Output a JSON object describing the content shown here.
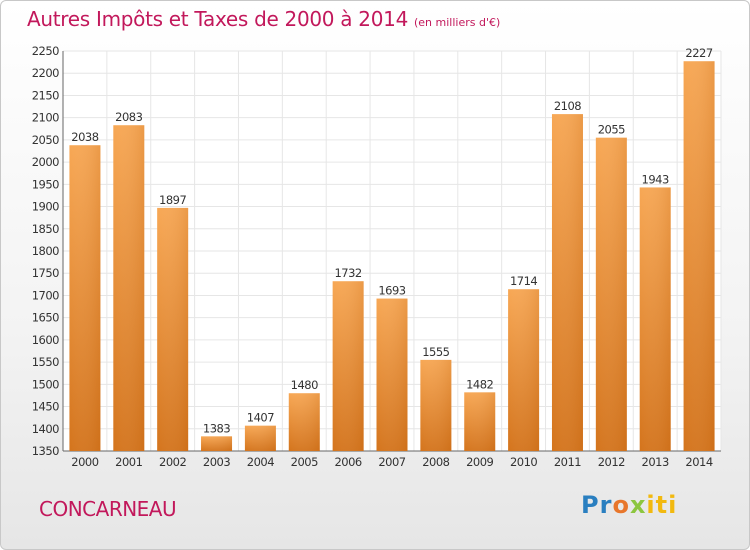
{
  "header": {
    "title": "Autres Impôts et Taxes de 2000 à 2014",
    "unit": "(en milliers d'€)"
  },
  "footer": {
    "city": "CONCARNEAU",
    "logo_parts": [
      "Pr",
      "o",
      "x",
      "iti"
    ]
  },
  "colors": {
    "title": "#c2185b",
    "bar_light": "#f6a352",
    "bar_dark": "#d97a22",
    "grid": "#e6e6e6"
  },
  "chart_data": {
    "type": "bar",
    "title": "Autres Impôts et Taxes de 2000 à 2014",
    "subtitle": "(en milliers d'€)",
    "categories": [
      "2000",
      "2001",
      "2002",
      "2003",
      "2004",
      "2005",
      "2006",
      "2007",
      "2008",
      "2009",
      "2010",
      "2011",
      "2012",
      "2013",
      "2014"
    ],
    "values": [
      2038,
      2083,
      1897,
      1383,
      1407,
      1480,
      1732,
      1693,
      1555,
      1482,
      1714,
      2108,
      2055,
      1943,
      2227
    ],
    "ylim": [
      1350,
      2250
    ],
    "ytick_step": 50,
    "grid": true,
    "legend": "none"
  }
}
